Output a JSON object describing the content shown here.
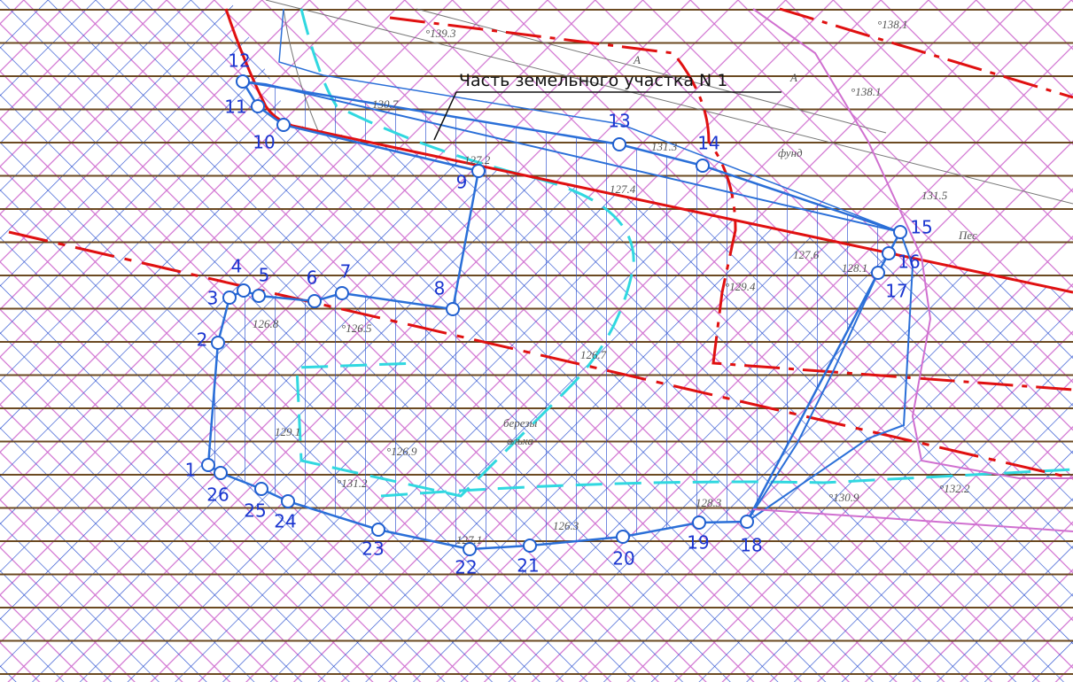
{
  "callout": "Часть земельного участка N 1",
  "points": [
    "1",
    "2",
    "3",
    "4",
    "5",
    "6",
    "7",
    "8",
    "9",
    "10",
    "11",
    "12",
    "13",
    "14",
    "15",
    "16",
    "17",
    "18",
    "19",
    "20",
    "21",
    "22",
    "23",
    "24",
    "25",
    "26"
  ],
  "map_labels": [
    "°139.3",
    "°138.1",
    "°138.1",
    "130.7",
    "127.2",
    "131.3",
    "фунд",
    "131.5",
    "Пес",
    "127.4",
    "127.6",
    "128.1",
    "°129.4",
    "126.8",
    "°126.5",
    "126.7",
    "березы",
    "ольха",
    "°126.9",
    "129.1",
    "°131.2",
    "126.3",
    "128.3",
    "127.1",
    "°130.9",
    "°132.2",
    "А",
    "А"
  ]
}
